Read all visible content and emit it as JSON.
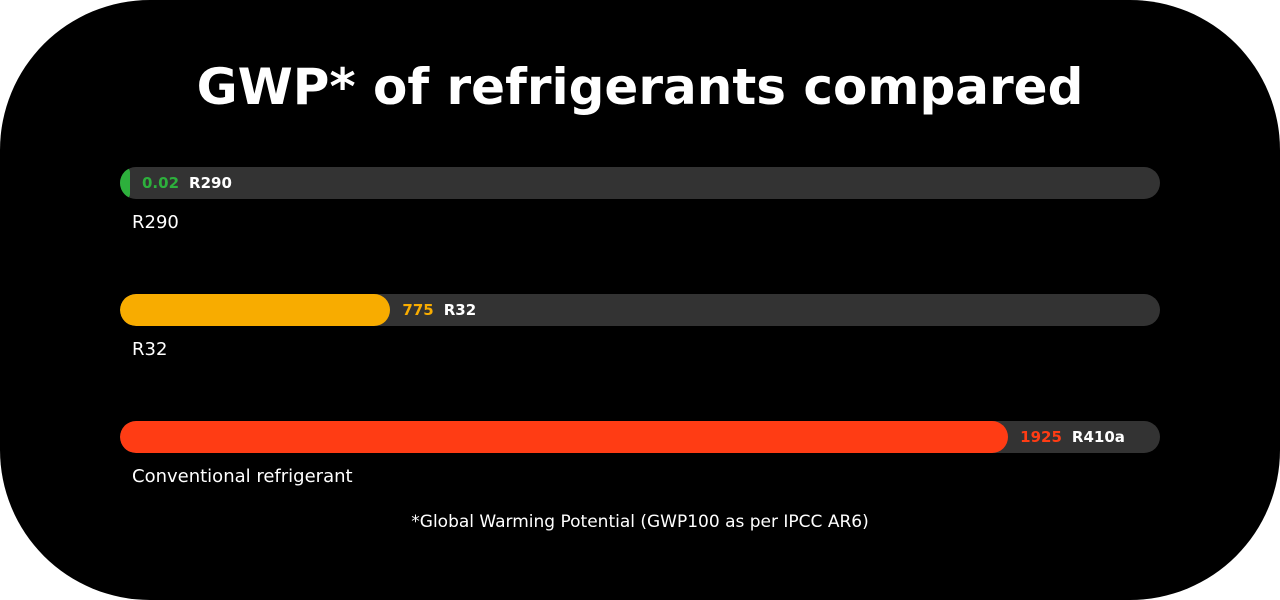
{
  "chart_data": {
    "type": "bar",
    "orientation": "horizontal",
    "title": "GWP* of refrigerants compared",
    "footnote": "*Global Warming Potential (GWP100 as per IPCC AR6)",
    "bars": [
      {
        "value_label": "0.02",
        "value": 0.02,
        "name": "R290",
        "caption": "R290",
        "color": "#2db03c",
        "fill_percent": 0.6
      },
      {
        "value_label": "775",
        "value": 775,
        "name": "R32",
        "caption": "R32",
        "color": "#f8ac00",
        "fill_percent": 26
      },
      {
        "value_label": "1925",
        "value": 1925,
        "name": "R410a",
        "caption": "Conventional refrigerant",
        "color": "#ff3c14",
        "fill_percent": 85.4
      }
    ],
    "track_color": "#333333",
    "background_color": "#000000"
  }
}
